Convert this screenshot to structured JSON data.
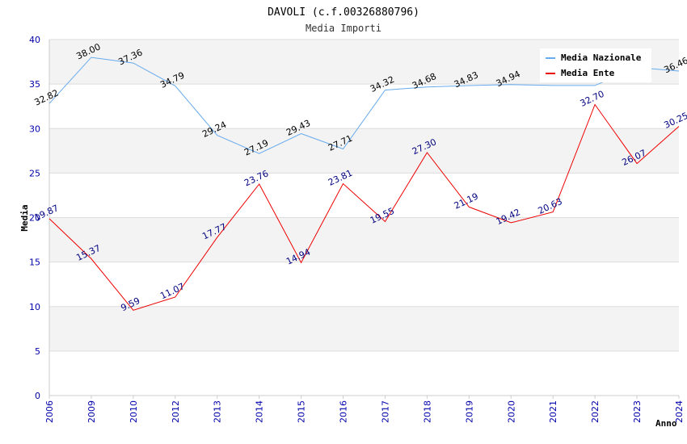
{
  "chart_data": {
    "type": "line",
    "title": "DAVOLI (c.f.00326880796)",
    "subtitle": "Media Importi",
    "xlabel": "Anno",
    "ylabel": "Media",
    "ylim": [
      0,
      40
    ],
    "yticks": [
      "0",
      "5",
      "10",
      "15",
      "20",
      "25",
      "30",
      "35",
      "40"
    ],
    "categories": [
      "2006",
      "2009",
      "2010",
      "2012",
      "2013",
      "2014",
      "2015",
      "2016",
      "2017",
      "2018",
      "2019",
      "2020",
      "2021",
      "2022",
      "2023",
      "2024"
    ],
    "grid": true,
    "legend_position": "top-right",
    "series": [
      {
        "name": "Media Nazionale",
        "color": "#66aaee",
        "values": [
          32.82,
          38.0,
          37.36,
          34.79,
          29.24,
          27.19,
          29.43,
          27.71,
          34.32,
          34.68,
          34.83,
          34.94,
          34.84,
          34.84,
          36.86,
          36.46
        ],
        "labels": [
          "32.82",
          "38.00",
          "37.36",
          "34.79",
          "29.24",
          "27.19",
          "29.43",
          "27.71",
          "34.32",
          "34.68",
          "34.83",
          "34.94",
          "",
          "",
          "",
          "36.46"
        ]
      },
      {
        "name": "Media Ente",
        "color": "#ee0000",
        "values": [
          19.87,
          15.37,
          9.59,
          11.07,
          17.77,
          23.76,
          14.94,
          23.81,
          19.55,
          27.3,
          21.19,
          19.42,
          20.63,
          32.7,
          26.07,
          30.25
        ],
        "labels": [
          "19.87",
          "15.37",
          "9.59",
          "11.07",
          "17.77",
          "23.76",
          "14.94",
          "23.81",
          "19.55",
          "27.30",
          "21.19",
          "19.42",
          "20.63",
          "32.70",
          "26.07",
          "30.25"
        ]
      }
    ]
  }
}
